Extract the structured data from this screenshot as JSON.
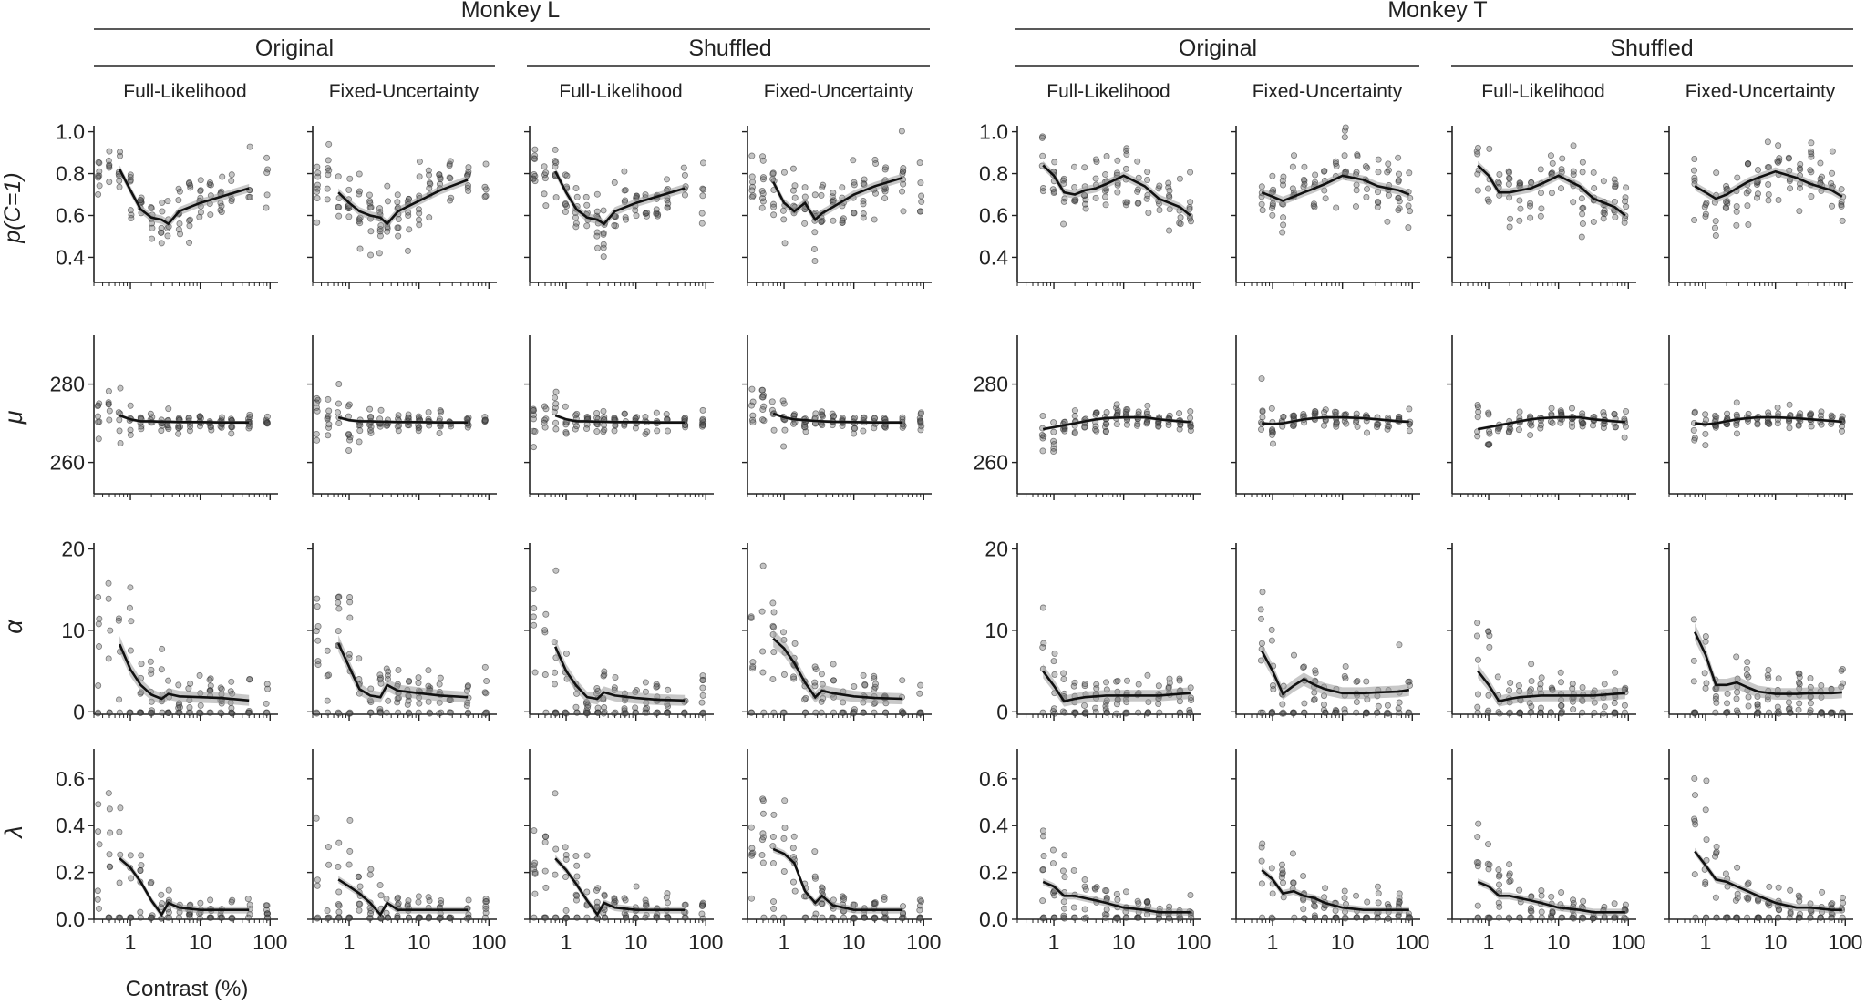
{
  "figure": {
    "monkeys": [
      {
        "name": "Monkey L",
        "groups": [
          {
            "name": "Original"
          },
          {
            "name": "Shuffled"
          }
        ]
      },
      {
        "name": "Monkey T",
        "groups": [
          {
            "name": "Original"
          },
          {
            "name": "Shuffled"
          }
        ]
      }
    ],
    "models": [
      "Full-Likelihood",
      "Fixed-Uncertainty"
    ],
    "row_labels": [
      "p(C=1)",
      "μ",
      "α",
      "λ"
    ],
    "xlabel": "Contrast (%)",
    "x_tick_labels": [
      "1",
      "10",
      "100"
    ]
  },
  "chart_data": {
    "type": "scatter",
    "description": "4 rows (parameters) x 8 columns (Monkey L / T; Original / Shuffled; Full-Likelihood / Fixed-Uncertainty). Points = per-session fitted parameter vs stimulus contrast, with mean line and shaded error band.",
    "xscale": "log",
    "xlim": [
      0.3,
      130
    ],
    "rows": [
      {
        "param": "p(C=1)",
        "ylim": [
          0.28,
          1.02
        ],
        "yticks": [
          0.4,
          0.6,
          0.8,
          1.0
        ],
        "ytick_labels": [
          "0.4",
          "0.6",
          "0.8",
          "1.0"
        ]
      },
      {
        "param": "mu",
        "ylim": [
          252,
          292
        ],
        "yticks": [
          260,
          280
        ],
        "ytick_labels": [
          "260",
          "280"
        ]
      },
      {
        "param": "alpha",
        "ylim": [
          -0.3,
          20.5
        ],
        "yticks": [
          0,
          10,
          20
        ],
        "ytick_labels": [
          "0",
          "10",
          "20"
        ]
      },
      {
        "param": "lambda",
        "ylim": [
          0,
          0.72
        ],
        "yticks": [
          0.0,
          0.2,
          0.4,
          0.6
        ],
        "ytick_labels": [
          "0.0",
          "0.2",
          "0.4",
          "0.6"
        ]
      }
    ],
    "monkey_L_contrasts": [
      0.35,
      0.5,
      0.7,
      1,
      1.4,
      2,
      2.8,
      3.5,
      5,
      7,
      10,
      14,
      20,
      28,
      50,
      90
    ],
    "monkey_T_contrasts": [
      0.7,
      1,
      1.4,
      2,
      2.8,
      4,
      5.6,
      8,
      11,
      16,
      22,
      32,
      45,
      64,
      90
    ],
    "series": [
      {
        "monkey": "Monkey L",
        "group": "Original",
        "model": "Full-Likelihood",
        "mean_x": [
          0.7,
          1,
          1.4,
          2,
          2.8,
          3.5,
          5,
          10,
          20,
          50
        ],
        "pC1": [
          0.82,
          0.72,
          0.63,
          0.59,
          0.58,
          0.56,
          0.62,
          0.66,
          0.69,
          0.73
        ],
        "mu": [
          272,
          271,
          270.5,
          270.5,
          270.4,
          270.4,
          270.3,
          270.3,
          270.2,
          270.2
        ],
        "alpha": [
          8.3,
          5.2,
          3.3,
          2.1,
          1.6,
          2.2,
          1.9,
          1.8,
          1.7,
          1.4
        ],
        "lambda": [
          0.26,
          0.22,
          0.16,
          0.08,
          0.02,
          0.07,
          0.05,
          0.04,
          0.04,
          0.04
        ]
      },
      {
        "monkey": "Monkey L",
        "group": "Original",
        "model": "Fixed-Uncertainty",
        "mean_x": [
          0.7,
          1,
          1.4,
          2,
          2.8,
          3.5,
          5,
          10,
          20,
          50
        ],
        "pC1": [
          0.71,
          0.66,
          0.62,
          0.6,
          0.59,
          0.56,
          0.62,
          0.67,
          0.72,
          0.77
        ],
        "mu": [
          271.5,
          270.8,
          270.5,
          270.5,
          270.4,
          270.4,
          270.3,
          270.3,
          270.2,
          270.2
        ],
        "alpha": [
          8.4,
          5.5,
          2.8,
          2.0,
          1.8,
          3.3,
          2.6,
          2.3,
          2.0,
          1.8
        ],
        "lambda": [
          0.17,
          0.14,
          0.11,
          0.07,
          0.02,
          0.07,
          0.04,
          0.04,
          0.04,
          0.04
        ]
      },
      {
        "monkey": "Monkey L",
        "group": "Shuffled",
        "model": "Full-Likelihood",
        "mean_x": [
          0.7,
          1,
          1.4,
          2,
          2.8,
          3.5,
          5,
          10,
          20,
          50
        ],
        "pC1": [
          0.81,
          0.71,
          0.63,
          0.59,
          0.58,
          0.56,
          0.62,
          0.66,
          0.69,
          0.73
        ],
        "mu": [
          272,
          271,
          270.5,
          270.5,
          270.4,
          270.4,
          270.3,
          270.3,
          270.2,
          270.2
        ],
        "alpha": [
          8.0,
          5.0,
          3.2,
          1.8,
          1.6,
          2.4,
          2.0,
          1.7,
          1.5,
          1.4
        ],
        "lambda": [
          0.26,
          0.21,
          0.15,
          0.08,
          0.02,
          0.07,
          0.05,
          0.04,
          0.04,
          0.04
        ]
      },
      {
        "monkey": "Monkey L",
        "group": "Shuffled",
        "model": "Fixed-Uncertainty",
        "mean_x": [
          0.7,
          1,
          1.4,
          2,
          2.8,
          3.5,
          5,
          10,
          20,
          50
        ],
        "pC1": [
          0.76,
          0.66,
          0.62,
          0.66,
          0.58,
          0.61,
          0.64,
          0.7,
          0.74,
          0.78
        ],
        "mu": [
          272.5,
          271.5,
          271,
          270.8,
          270.6,
          270.5,
          270.4,
          270.3,
          270.2,
          270.2
        ],
        "alpha": [
          9.0,
          7.8,
          6.0,
          3.6,
          1.8,
          2.6,
          2.3,
          1.9,
          1.7,
          1.6
        ],
        "lambda": [
          0.3,
          0.28,
          0.24,
          0.12,
          0.07,
          0.1,
          0.06,
          0.04,
          0.04,
          0.04
        ]
      },
      {
        "monkey": "Monkey T",
        "group": "Original",
        "model": "Full-Likelihood",
        "mean_x": [
          0.7,
          1,
          1.4,
          2,
          2.8,
          4,
          5.6,
          10,
          20,
          32,
          64,
          90
        ],
        "pC1": [
          0.84,
          0.79,
          0.71,
          0.7,
          0.72,
          0.73,
          0.75,
          0.79,
          0.74,
          0.68,
          0.64,
          0.6
        ],
        "mu": [
          268.5,
          269,
          269.5,
          270,
          270.5,
          271,
          271.3,
          271.5,
          271.5,
          271,
          270.5,
          270.3
        ],
        "alpha": [
          5.0,
          3.2,
          1.3,
          1.6,
          1.8,
          1.9,
          2.0,
          2.0,
          2.0,
          2.0,
          2.2,
          2.3
        ],
        "lambda": [
          0.16,
          0.14,
          0.1,
          0.1,
          0.09,
          0.08,
          0.07,
          0.05,
          0.04,
          0.03,
          0.03,
          0.03
        ]
      },
      {
        "monkey": "Monkey T",
        "group": "Original",
        "model": "Fixed-Uncertainty",
        "mean_x": [
          0.7,
          1,
          1.4,
          2,
          2.8,
          4,
          5.6,
          10,
          20,
          32,
          64,
          90
        ],
        "pC1": [
          0.71,
          0.69,
          0.67,
          0.69,
          0.71,
          0.73,
          0.75,
          0.79,
          0.77,
          0.74,
          0.72,
          0.7
        ],
        "mu": [
          270,
          269.8,
          270,
          270.5,
          271,
          271.3,
          271.5,
          271.5,
          271.3,
          271,
          270.5,
          270.4
        ],
        "alpha": [
          7.5,
          5.0,
          2.2,
          3.2,
          4.0,
          3.3,
          2.8,
          2.3,
          2.3,
          2.4,
          2.5,
          2.7
        ],
        "lambda": [
          0.21,
          0.17,
          0.11,
          0.12,
          0.1,
          0.09,
          0.07,
          0.05,
          0.04,
          0.04,
          0.04,
          0.04
        ]
      },
      {
        "monkey": "Monkey T",
        "group": "Shuffled",
        "model": "Full-Likelihood",
        "mean_x": [
          0.7,
          1,
          1.4,
          2,
          2.8,
          4,
          5.6,
          10,
          20,
          32,
          64,
          90
        ],
        "pC1": [
          0.84,
          0.79,
          0.71,
          0.71,
          0.72,
          0.73,
          0.75,
          0.79,
          0.74,
          0.68,
          0.64,
          0.6
        ],
        "mu": [
          268.5,
          269,
          269.5,
          270,
          270.5,
          271,
          271.3,
          271.5,
          271.5,
          271,
          270.5,
          270.3
        ],
        "alpha": [
          5.0,
          3.3,
          1.3,
          1.6,
          1.8,
          1.9,
          2.0,
          2.0,
          2.0,
          2.0,
          2.2,
          2.3
        ],
        "lambda": [
          0.16,
          0.14,
          0.1,
          0.1,
          0.09,
          0.08,
          0.07,
          0.05,
          0.04,
          0.03,
          0.03,
          0.03
        ]
      },
      {
        "monkey": "Monkey T",
        "group": "Shuffled",
        "model": "Fixed-Uncertainty",
        "mean_x": [
          0.7,
          1,
          1.4,
          2,
          2.8,
          4,
          5.6,
          10,
          20,
          32,
          64,
          90
        ],
        "pC1": [
          0.74,
          0.71,
          0.68,
          0.7,
          0.73,
          0.76,
          0.78,
          0.81,
          0.78,
          0.75,
          0.72,
          0.69
        ],
        "mu": [
          270,
          269.7,
          270,
          270.5,
          271,
          271.3,
          271.5,
          271.5,
          271.3,
          271,
          270.6,
          270.4
        ],
        "alpha": [
          9.8,
          7.0,
          3.3,
          3.3,
          3.6,
          3.0,
          2.5,
          2.2,
          2.2,
          2.3,
          2.3,
          2.4
        ],
        "lambda": [
          0.29,
          0.23,
          0.17,
          0.16,
          0.14,
          0.12,
          0.1,
          0.07,
          0.05,
          0.05,
          0.04,
          0.04
        ]
      }
    ]
  },
  "colors": {
    "axis": "#222222",
    "line": "#111111",
    "band": "#9a9a9a",
    "point_fill": "#555555",
    "point_edge": "#333333"
  }
}
